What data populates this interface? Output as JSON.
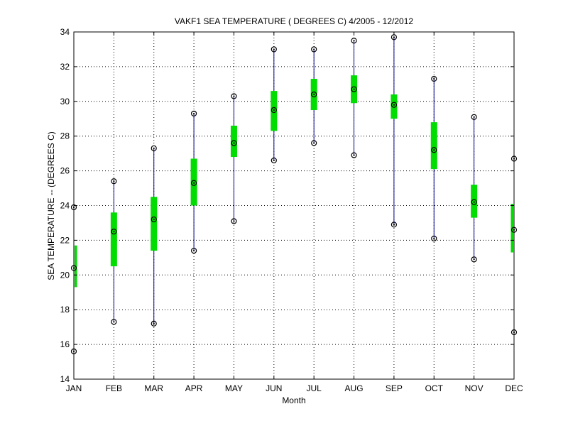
{
  "chart_data": {
    "type": "box",
    "title": "VAKF1  SEA TEMPERATURE ( DEGREES C) 4/2005 - 12/2012",
    "xlabel": "Month",
    "ylabel": "SEA TEMPERATURE -- (DEGREES C)",
    "ylim": [
      14,
      34
    ],
    "yticks": [
      14,
      16,
      18,
      20,
      22,
      24,
      26,
      28,
      30,
      32,
      34
    ],
    "grid": true,
    "categories": [
      "JAN",
      "FEB",
      "MAR",
      "APR",
      "MAY",
      "JUN",
      "JUL",
      "AUG",
      "SEP",
      "OCT",
      "NOV",
      "DEC"
    ],
    "min": [
      15.6,
      17.3,
      17.2,
      21.4,
      23.1,
      26.6,
      27.6,
      26.9,
      22.9,
      22.1,
      20.9,
      16.7
    ],
    "q1": [
      19.3,
      20.5,
      21.4,
      24.0,
      26.8,
      28.3,
      29.5,
      29.9,
      29.0,
      26.1,
      23.3,
      21.3
    ],
    "median": [
      20.4,
      22.5,
      23.2,
      25.3,
      27.6,
      29.5,
      30.4,
      30.7,
      29.8,
      27.2,
      24.2,
      22.6
    ],
    "q3": [
      21.7,
      23.6,
      24.5,
      26.7,
      28.6,
      30.6,
      31.3,
      31.5,
      30.4,
      28.8,
      25.2,
      24.1
    ],
    "max": [
      23.9,
      25.4,
      27.3,
      29.3,
      30.3,
      33.0,
      33.0,
      33.5,
      33.7,
      31.3,
      29.1,
      26.7
    ],
    "colors": {
      "whisker": "#00008b",
      "box": "#00dd00",
      "marker": "#000000",
      "grid": "#000000"
    }
  }
}
